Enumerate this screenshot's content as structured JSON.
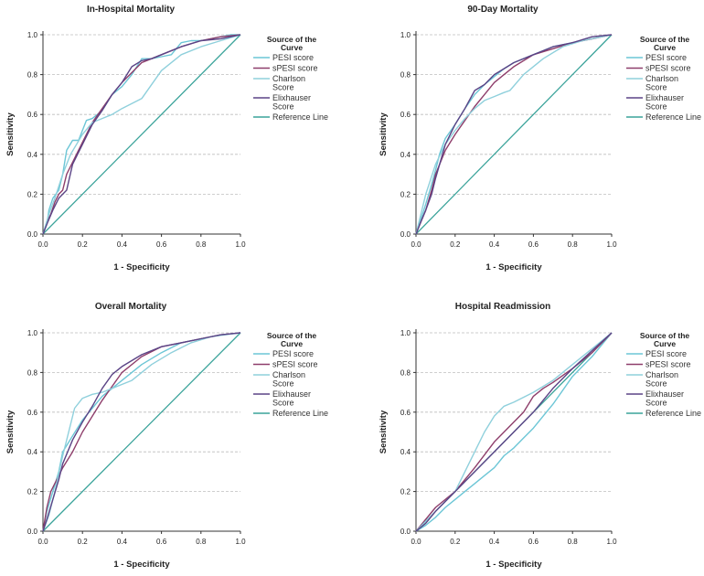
{
  "figure": {
    "legend_title": [
      "Source of the",
      "Curve"
    ],
    "legend_entries": [
      {
        "name": "PESI score",
        "color": "#6cc6d6"
      },
      {
        "name": "sPESI score",
        "color": "#8e3e6b"
      },
      {
        "name": "Charlson Score",
        "lines": [
          "Charlson",
          "Score"
        ],
        "color": "#8fd0dc"
      },
      {
        "name": "Elixhauser Score",
        "lines": [
          "Elixhauser",
          "Score"
        ],
        "color": "#5b4486"
      },
      {
        "name": "Reference Line",
        "color": "#3aa39a"
      }
    ]
  },
  "chart_data": [
    {
      "type": "line",
      "title": "In-Hospital Mortality",
      "xlabel": "1 - Specificity",
      "ylabel": "Sensitivity",
      "xlim": [
        0,
        1
      ],
      "ylim": [
        0,
        1
      ],
      "xticks": [
        "0.0",
        "0.2",
        "0.4",
        "0.6",
        "0.8",
        "1.0"
      ],
      "yticks": [
        "0.0",
        "0.2",
        "0.4",
        "0.6",
        "0.8",
        "1.0"
      ],
      "series": [
        {
          "name": "PESI score",
          "x": [
            0,
            0.02,
            0.03,
            0.05,
            0.08,
            0.1,
            0.12,
            0.15,
            0.18,
            0.2,
            0.22,
            0.25,
            0.3,
            0.35,
            0.4,
            0.45,
            0.5,
            0.55,
            0.6,
            0.65,
            0.7,
            0.75,
            0.8,
            0.85,
            0.9,
            0.95,
            1
          ],
          "y": [
            0,
            0.05,
            0.12,
            0.18,
            0.22,
            0.3,
            0.42,
            0.47,
            0.47,
            0.52,
            0.57,
            0.58,
            0.62,
            0.7,
            0.74,
            0.8,
            0.88,
            0.88,
            0.89,
            0.9,
            0.96,
            0.97,
            0.97,
            0.98,
            0.99,
            1,
            1
          ]
        },
        {
          "name": "sPESI score",
          "x": [
            0,
            0.02,
            0.04,
            0.06,
            0.08,
            0.1,
            0.12,
            0.15,
            0.2,
            0.25,
            0.3,
            0.35,
            0.4,
            0.45,
            0.5,
            0.55,
            0.6,
            0.7,
            0.8,
            0.9,
            1
          ],
          "y": [
            0,
            0.06,
            0.1,
            0.16,
            0.2,
            0.22,
            0.3,
            0.36,
            0.46,
            0.56,
            0.63,
            0.7,
            0.76,
            0.81,
            0.86,
            0.88,
            0.9,
            0.94,
            0.97,
            0.99,
            1
          ]
        },
        {
          "name": "Charlson Score",
          "x": [
            0,
            0.03,
            0.06,
            0.1,
            0.14,
            0.2,
            0.25,
            0.3,
            0.35,
            0.4,
            0.5,
            0.6,
            0.7,
            0.8,
            0.9,
            1
          ],
          "y": [
            0,
            0.1,
            0.18,
            0.3,
            0.4,
            0.5,
            0.56,
            0.58,
            0.6,
            0.63,
            0.68,
            0.82,
            0.9,
            0.94,
            0.97,
            1
          ]
        },
        {
          "name": "Elixhauser Score",
          "x": [
            0,
            0.02,
            0.05,
            0.08,
            0.1,
            0.12,
            0.15,
            0.2,
            0.25,
            0.3,
            0.35,
            0.4,
            0.45,
            0.5,
            0.55,
            0.6,
            0.7,
            0.8,
            0.9,
            1
          ],
          "y": [
            0,
            0.05,
            0.12,
            0.18,
            0.2,
            0.22,
            0.35,
            0.45,
            0.55,
            0.62,
            0.7,
            0.76,
            0.84,
            0.87,
            0.88,
            0.9,
            0.94,
            0.97,
            0.98,
            1
          ]
        },
        {
          "name": "Reference Line",
          "x": [
            0,
            1
          ],
          "y": [
            0,
            1
          ]
        }
      ]
    },
    {
      "type": "line",
      "title": "90-Day Mortality",
      "xlabel": "1 - Specificity",
      "ylabel": "Sensitivity",
      "xlim": [
        0,
        1
      ],
      "ylim": [
        0,
        1
      ],
      "xticks": [
        "0.0",
        "0.2",
        "0.4",
        "0.6",
        "0.8",
        "1.0"
      ],
      "yticks": [
        "0.0",
        "0.2",
        "0.4",
        "0.6",
        "0.8",
        "1.0"
      ],
      "series": [
        {
          "name": "PESI score",
          "x": [
            0,
            0.02,
            0.05,
            0.08,
            0.1,
            0.12,
            0.15,
            0.2,
            0.25,
            0.3,
            0.35,
            0.4,
            0.45,
            0.5,
            0.6,
            0.7,
            0.8,
            0.9,
            1
          ],
          "y": [
            0,
            0.06,
            0.15,
            0.25,
            0.32,
            0.4,
            0.48,
            0.55,
            0.63,
            0.7,
            0.75,
            0.79,
            0.83,
            0.86,
            0.9,
            0.94,
            0.96,
            0.98,
            1
          ]
        },
        {
          "name": "sPESI score",
          "x": [
            0,
            0.02,
            0.05,
            0.08,
            0.1,
            0.15,
            0.2,
            0.25,
            0.3,
            0.35,
            0.4,
            0.45,
            0.5,
            0.6,
            0.7,
            0.8,
            0.9,
            1
          ],
          "y": [
            0,
            0.05,
            0.12,
            0.22,
            0.3,
            0.42,
            0.5,
            0.57,
            0.64,
            0.7,
            0.76,
            0.8,
            0.84,
            0.9,
            0.93,
            0.96,
            0.98,
            1
          ]
        },
        {
          "name": "Charlson Score",
          "x": [
            0,
            0.02,
            0.05,
            0.1,
            0.15,
            0.2,
            0.25,
            0.3,
            0.35,
            0.4,
            0.45,
            0.48,
            0.55,
            0.65,
            0.75,
            0.85,
            1
          ],
          "y": [
            0,
            0.08,
            0.2,
            0.35,
            0.45,
            0.52,
            0.58,
            0.63,
            0.67,
            0.69,
            0.71,
            0.72,
            0.8,
            0.88,
            0.94,
            0.97,
            1
          ]
        },
        {
          "name": "Elixhauser Score",
          "x": [
            0,
            0.02,
            0.05,
            0.08,
            0.1,
            0.15,
            0.2,
            0.25,
            0.3,
            0.35,
            0.4,
            0.45,
            0.5,
            0.6,
            0.7,
            0.8,
            0.9,
            1
          ],
          "y": [
            0,
            0.05,
            0.12,
            0.2,
            0.28,
            0.45,
            0.55,
            0.63,
            0.72,
            0.75,
            0.8,
            0.83,
            0.86,
            0.9,
            0.94,
            0.96,
            0.99,
            1
          ]
        },
        {
          "name": "Reference Line",
          "x": [
            0,
            1
          ],
          "y": [
            0,
            1
          ]
        }
      ]
    },
    {
      "type": "line",
      "title": "Overall Mortality",
      "xlabel": "1 - Specificity",
      "ylabel": "Sensitivity",
      "xlim": [
        0,
        1
      ],
      "ylim": [
        0,
        1
      ],
      "xticks": [
        "0.0",
        "0.2",
        "0.4",
        "0.6",
        "0.8",
        "1.0"
      ],
      "yticks": [
        "0.0",
        "0.2",
        "0.4",
        "0.6",
        "0.8",
        "1.0"
      ],
      "series": [
        {
          "name": "PESI score",
          "x": [
            0,
            0.02,
            0.05,
            0.08,
            0.1,
            0.15,
            0.2,
            0.25,
            0.3,
            0.35,
            0.4,
            0.5,
            0.6,
            0.7,
            0.8,
            0.9,
            1
          ],
          "y": [
            0,
            0.1,
            0.2,
            0.3,
            0.4,
            0.48,
            0.56,
            0.62,
            0.68,
            0.72,
            0.76,
            0.84,
            0.9,
            0.95,
            0.97,
            0.99,
            1
          ]
        },
        {
          "name": "sPESI score",
          "x": [
            0,
            0.02,
            0.04,
            0.07,
            0.1,
            0.15,
            0.2,
            0.25,
            0.3,
            0.35,
            0.4,
            0.5,
            0.6,
            0.7,
            0.8,
            0.9,
            1
          ],
          "y": [
            0,
            0.12,
            0.2,
            0.26,
            0.32,
            0.4,
            0.5,
            0.58,
            0.66,
            0.73,
            0.8,
            0.88,
            0.93,
            0.95,
            0.97,
            0.99,
            1
          ]
        },
        {
          "name": "Charlson Score",
          "x": [
            0,
            0.03,
            0.06,
            0.1,
            0.13,
            0.16,
            0.2,
            0.25,
            0.3,
            0.35,
            0.45,
            0.55,
            0.65,
            0.75,
            0.85,
            1
          ],
          "y": [
            0,
            0.08,
            0.2,
            0.38,
            0.5,
            0.62,
            0.67,
            0.69,
            0.7,
            0.72,
            0.76,
            0.84,
            0.9,
            0.95,
            0.98,
            1
          ]
        },
        {
          "name": "Elixhauser Score",
          "x": [
            0,
            0.02,
            0.05,
            0.08,
            0.1,
            0.15,
            0.2,
            0.25,
            0.3,
            0.35,
            0.4,
            0.5,
            0.6,
            0.7,
            0.8,
            0.9,
            1
          ],
          "y": [
            0,
            0.06,
            0.16,
            0.26,
            0.34,
            0.46,
            0.55,
            0.63,
            0.72,
            0.79,
            0.83,
            0.89,
            0.93,
            0.95,
            0.97,
            0.99,
            1
          ]
        },
        {
          "name": "Reference Line",
          "x": [
            0,
            1
          ],
          "y": [
            0,
            1
          ]
        }
      ]
    },
    {
      "type": "line",
      "title": "Hospital Readmission",
      "xlabel": "1 - Specificity",
      "ylabel": "Sensitivity",
      "xlim": [
        0,
        1
      ],
      "ylim": [
        0,
        1
      ],
      "xticks": [
        "0.0",
        "0.2",
        "0.4",
        "0.6",
        "0.8",
        "1.0"
      ],
      "yticks": [
        "0.0",
        "0.2",
        "0.4",
        "0.6",
        "0.8",
        "1.0"
      ],
      "series": [
        {
          "name": "PESI score",
          "x": [
            0,
            0.05,
            0.1,
            0.15,
            0.2,
            0.25,
            0.3,
            0.35,
            0.4,
            0.45,
            0.5,
            0.55,
            0.6,
            0.65,
            0.7,
            0.8,
            0.9,
            1
          ],
          "y": [
            0,
            0.03,
            0.07,
            0.12,
            0.16,
            0.2,
            0.24,
            0.28,
            0.32,
            0.38,
            0.42,
            0.47,
            0.52,
            0.58,
            0.64,
            0.78,
            0.88,
            1
          ]
        },
        {
          "name": "sPESI score",
          "x": [
            0,
            0.05,
            0.1,
            0.2,
            0.3,
            0.4,
            0.5,
            0.55,
            0.6,
            0.65,
            0.7,
            0.8,
            0.9,
            1
          ],
          "y": [
            0,
            0.06,
            0.12,
            0.2,
            0.32,
            0.45,
            0.55,
            0.6,
            0.68,
            0.72,
            0.75,
            0.82,
            0.9,
            1
          ]
        },
        {
          "name": "Charlson Score",
          "x": [
            0,
            0.05,
            0.1,
            0.15,
            0.2,
            0.25,
            0.3,
            0.35,
            0.4,
            0.45,
            0.5,
            0.6,
            0.7,
            0.8,
            0.9,
            1
          ],
          "y": [
            0,
            0.05,
            0.1,
            0.15,
            0.2,
            0.3,
            0.4,
            0.5,
            0.58,
            0.63,
            0.65,
            0.7,
            0.76,
            0.84,
            0.92,
            1
          ]
        },
        {
          "name": "Elixhauser Score",
          "x": [
            0,
            0.05,
            0.1,
            0.2,
            0.3,
            0.4,
            0.5,
            0.6,
            0.7,
            0.8,
            0.9,
            1
          ],
          "y": [
            0,
            0.04,
            0.1,
            0.2,
            0.3,
            0.4,
            0.5,
            0.6,
            0.72,
            0.82,
            0.91,
            1
          ]
        },
        {
          "name": "Reference Line",
          "x": [
            0,
            1
          ],
          "y": [
            0,
            1
          ]
        }
      ]
    }
  ]
}
